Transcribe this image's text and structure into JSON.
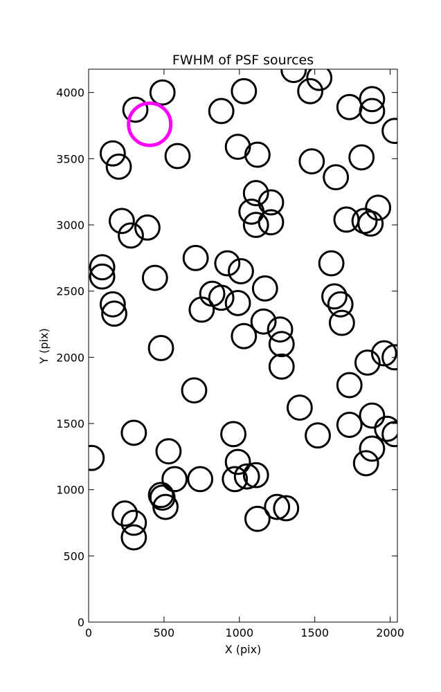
{
  "chart_data": {
    "type": "scatter",
    "title": "FWHM of PSF sources",
    "xlabel": "X (pix)",
    "ylabel": "Y (pix)",
    "xlim": [
      0,
      2048
    ],
    "ylim": [
      0,
      4176
    ],
    "grid": false,
    "x_ticks": [
      0,
      500,
      1000,
      1500,
      2000
    ],
    "y_ticks": [
      0,
      500,
      1000,
      1500,
      2000,
      2500,
      3000,
      3500,
      4000
    ],
    "marker_radius_pix": 80,
    "highlight_color": "#ff00ff",
    "point_color": "#000000",
    "highlight": [
      {
        "x": 405,
        "y": 3760,
        "r": 140
      }
    ],
    "points": [
      {
        "x": 310,
        "y": 3870
      },
      {
        "x": 490,
        "y": 4000
      },
      {
        "x": 1030,
        "y": 4010
      },
      {
        "x": 880,
        "y": 3860
      },
      {
        "x": 1360,
        "y": 4170
      },
      {
        "x": 1530,
        "y": 4110
      },
      {
        "x": 1470,
        "y": 4010
      },
      {
        "x": 1730,
        "y": 3890
      },
      {
        "x": 1880,
        "y": 3950
      },
      {
        "x": 1880,
        "y": 3860
      },
      {
        "x": 2030,
        "y": 3710
      },
      {
        "x": 160,
        "y": 3540
      },
      {
        "x": 200,
        "y": 3440
      },
      {
        "x": 590,
        "y": 3520
      },
      {
        "x": 990,
        "y": 3590
      },
      {
        "x": 1120,
        "y": 3530
      },
      {
        "x": 1480,
        "y": 3480
      },
      {
        "x": 1640,
        "y": 3360
      },
      {
        "x": 1810,
        "y": 3510
      },
      {
        "x": 220,
        "y": 3030
      },
      {
        "x": 280,
        "y": 2920
      },
      {
        "x": 390,
        "y": 2980
      },
      {
        "x": 1110,
        "y": 3240
      },
      {
        "x": 1210,
        "y": 3170
      },
      {
        "x": 1080,
        "y": 3100
      },
      {
        "x": 1110,
        "y": 3000
      },
      {
        "x": 1210,
        "y": 3020
      },
      {
        "x": 1710,
        "y": 3040
      },
      {
        "x": 1830,
        "y": 3030
      },
      {
        "x": 1870,
        "y": 3010
      },
      {
        "x": 1920,
        "y": 3130
      },
      {
        "x": 90,
        "y": 2680
      },
      {
        "x": 90,
        "y": 2610
      },
      {
        "x": 710,
        "y": 2750
      },
      {
        "x": 920,
        "y": 2710
      },
      {
        "x": 1010,
        "y": 2650
      },
      {
        "x": 440,
        "y": 2600
      },
      {
        "x": 1610,
        "y": 2710
      },
      {
        "x": 160,
        "y": 2400
      },
      {
        "x": 170,
        "y": 2330
      },
      {
        "x": 820,
        "y": 2480
      },
      {
        "x": 880,
        "y": 2450
      },
      {
        "x": 750,
        "y": 2360
      },
      {
        "x": 990,
        "y": 2410
      },
      {
        "x": 1170,
        "y": 2520
      },
      {
        "x": 1630,
        "y": 2460
      },
      {
        "x": 1670,
        "y": 2400
      },
      {
        "x": 1680,
        "y": 2260
      },
      {
        "x": 1160,
        "y": 2270
      },
      {
        "x": 1270,
        "y": 2210
      },
      {
        "x": 1030,
        "y": 2160
      },
      {
        "x": 1280,
        "y": 2100
      },
      {
        "x": 480,
        "y": 2070
      },
      {
        "x": 1280,
        "y": 1930
      },
      {
        "x": 1850,
        "y": 1960
      },
      {
        "x": 1960,
        "y": 2030
      },
      {
        "x": 2030,
        "y": 2000
      },
      {
        "x": 700,
        "y": 1750
      },
      {
        "x": 1730,
        "y": 1790
      },
      {
        "x": 1400,
        "y": 1620
      },
      {
        "x": 300,
        "y": 1430
      },
      {
        "x": 960,
        "y": 1420
      },
      {
        "x": 1520,
        "y": 1410
      },
      {
        "x": 1730,
        "y": 1490
      },
      {
        "x": 1880,
        "y": 1560
      },
      {
        "x": 1980,
        "y": 1460
      },
      {
        "x": 2030,
        "y": 1420
      },
      {
        "x": 20,
        "y": 1240
      },
      {
        "x": 530,
        "y": 1290
      },
      {
        "x": 990,
        "y": 1210
      },
      {
        "x": 1880,
        "y": 1310
      },
      {
        "x": 1840,
        "y": 1200
      },
      {
        "x": 570,
        "y": 1080
      },
      {
        "x": 740,
        "y": 1080
      },
      {
        "x": 970,
        "y": 1080
      },
      {
        "x": 1050,
        "y": 1100
      },
      {
        "x": 1110,
        "y": 1110
      },
      {
        "x": 480,
        "y": 960
      },
      {
        "x": 490,
        "y": 940
      },
      {
        "x": 510,
        "y": 870
      },
      {
        "x": 240,
        "y": 820
      },
      {
        "x": 300,
        "y": 750
      },
      {
        "x": 300,
        "y": 640
      },
      {
        "x": 1120,
        "y": 780
      },
      {
        "x": 1250,
        "y": 870
      },
      {
        "x": 1310,
        "y": 860
      }
    ]
  }
}
